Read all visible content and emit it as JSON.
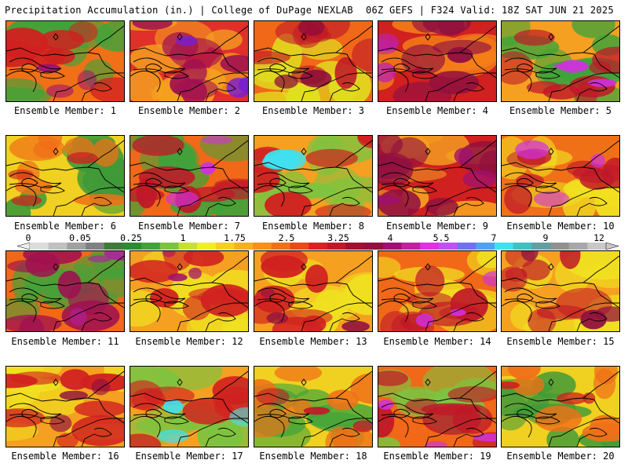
{
  "header": {
    "left_title": "Precipitation Accumulation (in.) | College of DuPage NEXLAB",
    "right_title": "06Z GEFS | F324 Valid: 18Z SAT JUN 21 2025"
  },
  "members": [
    {
      "label": "Ensemble Member: 1",
      "base": "#f07018",
      "wet": "#d02020",
      "dry": "#3fa33a",
      "max": "#a01070"
    },
    {
      "label": "Ensemble Member: 2",
      "base": "#e0302a",
      "wet": "#a01050",
      "dry": "#f5a020",
      "max": "#7a1fd0"
    },
    {
      "label": "Ensemble Member: 3",
      "base": "#f06818",
      "wet": "#c01828",
      "dry": "#e0e020",
      "max": "#8b0a3a"
    },
    {
      "label": "Ensemble Member: 4",
      "base": "#d02020",
      "wet": "#901040",
      "dry": "#f58018",
      "max": "#c020b0"
    },
    {
      "label": "Ensemble Member: 5",
      "base": "#f5a020",
      "wet": "#c01828",
      "dry": "#3fa33a",
      "max": "#d030e0"
    },
    {
      "label": "Ensemble Member: 6",
      "base": "#f0d020",
      "wet": "#f07018",
      "dry": "#3f9a38",
      "max": "#d02020"
    },
    {
      "label": "Ensemble Member: 7",
      "base": "#f06818",
      "wet": "#c01828",
      "dry": "#3fa33a",
      "max": "#d030e0"
    },
    {
      "label": "Ensemble Member: 8",
      "base": "#f5a020",
      "wet": "#d02020",
      "dry": "#7cc440",
      "max": "#40e0f0"
    },
    {
      "label": "Ensemble Member: 9",
      "base": "#d02020",
      "wet": "#901040",
      "dry": "#f5a020",
      "max": "#a01070"
    },
    {
      "label": "Ensemble Member: 10",
      "base": "#f07018",
      "wet": "#c01828",
      "dry": "#f0e020",
      "max": "#d030e0"
    },
    {
      "label": "Ensemble Member: 11",
      "base": "#f06818",
      "wet": "#a01050",
      "dry": "#3fa33a",
      "max": "#b020a0"
    },
    {
      "label": "Ensemble Member: 12",
      "base": "#f5a020",
      "wet": "#d02020",
      "dry": "#f0e020",
      "max": "#a01070"
    },
    {
      "label": "Ensemble Member: 13",
      "base": "#f5a020",
      "wet": "#d02020",
      "dry": "#f0e020",
      "max": "#901040"
    },
    {
      "label": "Ensemble Member: 14",
      "base": "#f06818",
      "wet": "#c01828",
      "dry": "#f0e020",
      "max": "#d030e0"
    },
    {
      "label": "Ensemble Member: 15",
      "base": "#f5a020",
      "wet": "#c01828",
      "dry": "#f0e020",
      "max": "#901040"
    },
    {
      "label": "Ensemble Member: 16",
      "base": "#f5a020",
      "wet": "#d02020",
      "dry": "#f0e020",
      "max": "#901040"
    },
    {
      "label": "Ensemble Member: 17",
      "base": "#f5a020",
      "wet": "#d02020",
      "dry": "#7cc440",
      "max": "#40e0f0"
    },
    {
      "label": "Ensemble Member: 18",
      "base": "#f0d020",
      "wet": "#f07018",
      "dry": "#3fa33a",
      "max": "#c01828"
    },
    {
      "label": "Ensemble Member: 19",
      "base": "#f06818",
      "wet": "#c01828",
      "dry": "#7cc440",
      "max": "#d030e0"
    },
    {
      "label": "Ensemble Member: 20",
      "base": "#f0d020",
      "wet": "#f07018",
      "dry": "#3f9a38",
      "max": "#d02020"
    }
  ],
  "colorbar": {
    "labels": [
      "0",
      "0.05",
      "0.25",
      "1",
      "1.75",
      "2.5",
      "3.25",
      "4",
      "5.5",
      "7",
      "9",
      "12"
    ],
    "colors": [
      "#dcdcdc",
      "#c0c0c0",
      "#a0a0a0",
      "#808080",
      "#3f7a3a",
      "#2e8b34",
      "#3fa33a",
      "#7cc440",
      "#c8e030",
      "#f0f020",
      "#f5d020",
      "#f5b020",
      "#f59018",
      "#f07018",
      "#e84a18",
      "#e02020",
      "#c01828",
      "#a01030",
      "#901040",
      "#a01070",
      "#c020a0",
      "#e030e0",
      "#c050f0",
      "#7070f0",
      "#50a0f0",
      "#40e0f0",
      "#40c0c0",
      "#60a0a0",
      "#909090",
      "#a8a8a8",
      "#c8c8c8"
    ]
  }
}
